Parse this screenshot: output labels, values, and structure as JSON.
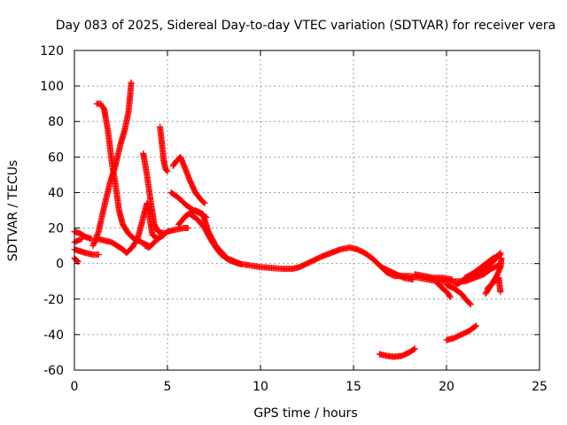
{
  "chart_data": {
    "type": "scatter",
    "title": "Day 083 of 2025, Sidereal Day-to-day VTEC variation (SDTVAR) for receiver vera",
    "xlabel": "GPS time / hours",
    "ylabel": "SDTVAR / TECUs",
    "xlim": [
      0,
      25
    ],
    "ylim": [
      -60,
      120
    ],
    "xticks": [
      0,
      5,
      10,
      15,
      20,
      25
    ],
    "yticks": [
      -60,
      -40,
      -20,
      0,
      20,
      40,
      60,
      80,
      100,
      120
    ],
    "grid": true,
    "marker": "+",
    "marker_color": "#ff0000",
    "series": [
      {
        "name": "main",
        "points": [
          [
            6.2,
            28
          ],
          [
            6.6,
            25
          ],
          [
            7.0,
            20
          ],
          [
            7.3,
            14
          ],
          [
            7.6,
            9
          ],
          [
            7.9,
            5
          ],
          [
            8.3,
            2
          ],
          [
            8.8,
            0
          ],
          [
            9.4,
            -1
          ],
          [
            10.0,
            -2
          ],
          [
            10.6,
            -2.5
          ],
          [
            11.2,
            -3
          ],
          [
            11.7,
            -3
          ],
          [
            12.1,
            -2
          ],
          [
            12.5,
            0
          ],
          [
            12.9,
            2
          ],
          [
            13.3,
            4
          ],
          [
            13.8,
            6
          ],
          [
            14.3,
            8
          ],
          [
            14.8,
            9
          ],
          [
            15.2,
            8
          ],
          [
            15.6,
            6
          ],
          [
            16.0,
            3
          ],
          [
            16.4,
            -1
          ],
          [
            16.8,
            -5
          ],
          [
            17.2,
            -7
          ],
          [
            17.6,
            -7
          ],
          [
            18.0,
            -7
          ],
          [
            18.5,
            -8
          ],
          [
            19.0,
            -9
          ],
          [
            19.5,
            -10
          ],
          [
            20.0,
            -10
          ],
          [
            20.5,
            -10
          ],
          [
            21.0,
            -10
          ],
          [
            21.5,
            -8
          ],
          [
            22.0,
            -6
          ],
          [
            22.4,
            -3
          ],
          [
            22.8,
            -1
          ]
        ]
      },
      {
        "name": "main-upper",
        "points": [
          [
            5.6,
            22
          ],
          [
            6.0,
            27
          ],
          [
            6.5,
            30
          ],
          [
            6.9,
            28
          ],
          [
            7.2,
            18
          ],
          [
            7.6,
            10
          ],
          [
            8.2,
            3
          ],
          [
            9.0,
            -0.5
          ]
        ]
      },
      {
        "name": "s1",
        "points": [
          [
            1.2,
            90
          ],
          [
            1.4,
            90
          ],
          [
            1.6,
            87
          ],
          [
            1.8,
            75
          ],
          [
            2.0,
            58
          ],
          [
            2.2,
            45
          ],
          [
            2.4,
            30
          ],
          [
            2.6,
            22
          ],
          [
            2.9,
            17
          ],
          [
            3.2,
            14
          ],
          [
            3.6,
            12
          ],
          [
            4.0,
            10
          ]
        ]
      },
      {
        "name": "s2",
        "points": [
          [
            1.0,
            10
          ],
          [
            1.3,
            18
          ],
          [
            1.6,
            32
          ],
          [
            1.9,
            45
          ],
          [
            2.2,
            55
          ],
          [
            2.5,
            68
          ],
          [
            2.7,
            75
          ],
          [
            2.9,
            85
          ],
          [
            3.0,
            95
          ],
          [
            3.05,
            102
          ]
        ]
      },
      {
        "name": "s3",
        "points": [
          [
            3.7,
            62
          ],
          [
            3.9,
            50
          ],
          [
            4.1,
            35
          ],
          [
            4.3,
            22
          ],
          [
            4.5,
            18
          ],
          [
            4.8,
            17
          ]
        ]
      },
      {
        "name": "s4",
        "points": [
          [
            4.6,
            77
          ],
          [
            4.7,
            68
          ],
          [
            4.8,
            58
          ],
          [
            4.9,
            53
          ],
          [
            5.0,
            52
          ]
        ]
      },
      {
        "name": "s5",
        "points": [
          [
            5.3,
            55
          ],
          [
            5.5,
            58
          ],
          [
            5.7,
            60
          ],
          [
            5.9,
            55
          ],
          [
            6.2,
            47
          ],
          [
            6.5,
            40
          ],
          [
            6.8,
            36
          ],
          [
            7.0,
            34
          ]
        ]
      },
      {
        "name": "s6",
        "points": [
          [
            5.2,
            40
          ],
          [
            5.6,
            37
          ],
          [
            6.0,
            33
          ],
          [
            6.4,
            30
          ],
          [
            6.8,
            28
          ],
          [
            7.1,
            26
          ]
        ]
      },
      {
        "name": "s7",
        "points": [
          [
            0.0,
            18
          ],
          [
            0.3,
            17
          ],
          [
            0.6,
            15
          ],
          [
            0.9,
            14
          ]
        ]
      },
      {
        "name": "s8",
        "points": [
          [
            0.0,
            8
          ],
          [
            0.3,
            7
          ],
          [
            0.6,
            6
          ],
          [
            1.0,
            5
          ],
          [
            1.3,
            5
          ]
        ]
      },
      {
        "name": "s9",
        "points": [
          [
            0.0,
            3
          ],
          [
            0.1,
            2
          ],
          [
            0.2,
            1
          ]
        ]
      },
      {
        "name": "s10",
        "points": [
          [
            0.0,
            12
          ],
          [
            0.2,
            13
          ],
          [
            0.4,
            14
          ]
        ]
      },
      {
        "name": "s11",
        "points": [
          [
            1.2,
            14
          ],
          [
            1.6,
            13
          ],
          [
            2.0,
            12
          ],
          [
            2.3,
            10
          ],
          [
            2.6,
            8
          ],
          [
            2.8,
            6
          ],
          [
            3.1,
            9
          ],
          [
            3.4,
            14
          ],
          [
            3.7,
            26
          ],
          [
            3.9,
            34
          ],
          [
            4.0,
            28
          ],
          [
            4.2,
            16
          ],
          [
            4.5,
            14
          ],
          [
            4.8,
            16
          ]
        ]
      },
      {
        "name": "s12",
        "points": [
          [
            3.8,
            10
          ],
          [
            4.0,
            9
          ],
          [
            4.2,
            11
          ],
          [
            4.6,
            15
          ],
          [
            5.0,
            18
          ],
          [
            5.4,
            19
          ],
          [
            5.9,
            20
          ],
          [
            6.1,
            20
          ]
        ]
      },
      {
        "name": "s13",
        "points": [
          [
            16.4,
            -51
          ],
          [
            16.8,
            -52
          ],
          [
            17.2,
            -52.5
          ],
          [
            17.6,
            -52
          ],
          [
            18.0,
            -50
          ],
          [
            18.3,
            -48
          ]
        ]
      },
      {
        "name": "s14",
        "points": [
          [
            20.0,
            -43
          ],
          [
            20.4,
            -42
          ],
          [
            20.8,
            -40
          ],
          [
            21.2,
            -38
          ],
          [
            21.6,
            -35
          ]
        ]
      },
      {
        "name": "s15",
        "points": [
          [
            20.0,
            -12
          ],
          [
            20.4,
            -14
          ],
          [
            20.8,
            -17
          ],
          [
            21.1,
            -21
          ],
          [
            21.3,
            -23
          ]
        ]
      },
      {
        "name": "s16",
        "points": [
          [
            19.5,
            -11
          ],
          [
            19.8,
            -14
          ],
          [
            20.1,
            -17
          ],
          [
            20.2,
            -19
          ]
        ]
      },
      {
        "name": "s17",
        "points": [
          [
            22.1,
            -17
          ],
          [
            22.4,
            -12
          ],
          [
            22.7,
            -7
          ],
          [
            22.9,
            -2
          ],
          [
            22.95,
            3
          ]
        ]
      },
      {
        "name": "s18",
        "points": [
          [
            22.2,
            -14
          ],
          [
            22.5,
            -11
          ],
          [
            22.8,
            -8
          ],
          [
            22.9,
            -16
          ]
        ]
      },
      {
        "name": "s19",
        "points": [
          [
            20.5,
            -12
          ],
          [
            21.0,
            -9
          ],
          [
            21.5,
            -6
          ],
          [
            22.0,
            -3
          ],
          [
            22.5,
            1
          ],
          [
            22.9,
            6
          ]
        ]
      },
      {
        "name": "s20",
        "points": [
          [
            21.0,
            -8
          ],
          [
            21.5,
            -5
          ],
          [
            22.0,
            -1
          ],
          [
            22.5,
            3
          ],
          [
            22.9,
            5
          ]
        ]
      },
      {
        "name": "s21",
        "points": [
          [
            16.5,
            -2
          ],
          [
            16.9,
            -4
          ],
          [
            17.3,
            -6
          ],
          [
            17.7,
            -8
          ],
          [
            18.2,
            -9
          ]
        ]
      },
      {
        "name": "s22",
        "points": [
          [
            18.3,
            -6
          ],
          [
            18.8,
            -7
          ],
          [
            19.3,
            -8
          ],
          [
            19.8,
            -8
          ],
          [
            20.3,
            -9
          ]
        ]
      }
    ]
  }
}
